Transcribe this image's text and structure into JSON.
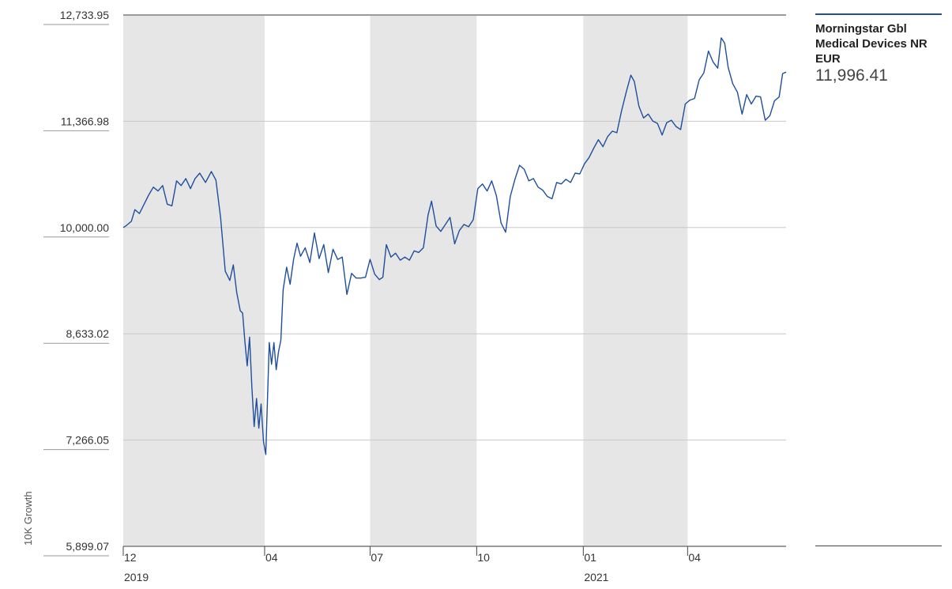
{
  "chart_data": {
    "type": "line",
    "ylabel": "10K Growth",
    "ylim": [
      5899.07,
      12733.95
    ],
    "y_ticks": [
      "12,733.95",
      "11,366.98",
      "10,000.00",
      "8,633.02",
      "7,266.05",
      "5,899.07"
    ],
    "y_tick_values": [
      12733.95,
      11366.98,
      10000.0,
      8633.02,
      7266.05,
      5899.07
    ],
    "x_ticks": [
      {
        "label": "12",
        "year": "2019",
        "date": "2019-12-01"
      },
      {
        "label": "04",
        "year": "",
        "date": "2020-04-01"
      },
      {
        "label": "07",
        "year": "",
        "date": "2020-07-01"
      },
      {
        "label": "10",
        "year": "",
        "date": "2020-10-01"
      },
      {
        "label": "01",
        "year": "2021",
        "date": "2021-01-01"
      },
      {
        "label": "04",
        "year": "",
        "date": "2021-04-01"
      }
    ],
    "xlim": [
      "2019-12-01",
      "2021-06-25"
    ],
    "shaded_periods": [
      [
        "2019-12-01",
        "2020-04-01"
      ],
      [
        "2020-07-01",
        "2020-10-01"
      ],
      [
        "2021-01-01",
        "2021-04-01"
      ]
    ],
    "grid": true,
    "legend_position": "right",
    "series": [
      {
        "name": "Morningstar Gbl Medical Devices NR EUR",
        "color": "#1f4e9c",
        "last_value": "11,996.41",
        "points": [
          [
            "2019-12-01",
            10000
          ],
          [
            "2019-12-04",
            10030
          ],
          [
            "2019-12-08",
            10080
          ],
          [
            "2019-12-11",
            10230
          ],
          [
            "2019-12-15",
            10180
          ],
          [
            "2019-12-19",
            10300
          ],
          [
            "2019-12-23",
            10420
          ],
          [
            "2019-12-27",
            10520
          ],
          [
            "2019-12-31",
            10470
          ],
          [
            "2020-01-04",
            10540
          ],
          [
            "2020-01-08",
            10300
          ],
          [
            "2020-01-12",
            10280
          ],
          [
            "2020-01-16",
            10600
          ],
          [
            "2020-01-20",
            10540
          ],
          [
            "2020-01-24",
            10630
          ],
          [
            "2020-01-28",
            10500
          ],
          [
            "2020-02-01",
            10630
          ],
          [
            "2020-02-05",
            10700
          ],
          [
            "2020-02-10",
            10580
          ],
          [
            "2020-02-15",
            10720
          ],
          [
            "2020-02-19",
            10610
          ],
          [
            "2020-02-23",
            10130
          ],
          [
            "2020-02-27",
            9440
          ],
          [
            "2020-03-02",
            9320
          ],
          [
            "2020-03-05",
            9520
          ],
          [
            "2020-03-08",
            9160
          ],
          [
            "2020-03-11",
            8930
          ],
          [
            "2020-03-13",
            8900
          ],
          [
            "2020-03-15",
            8530
          ],
          [
            "2020-03-17",
            8220
          ],
          [
            "2020-03-19",
            8590
          ],
          [
            "2020-03-21",
            7950
          ],
          [
            "2020-03-23",
            7440
          ],
          [
            "2020-03-25",
            7800
          ],
          [
            "2020-03-27",
            7420
          ],
          [
            "2020-03-29",
            7730
          ],
          [
            "2020-03-31",
            7250
          ],
          [
            "2020-04-02",
            7080
          ],
          [
            "2020-04-05",
            8520
          ],
          [
            "2020-04-07",
            8240
          ],
          [
            "2020-04-09",
            8520
          ],
          [
            "2020-04-11",
            8170
          ],
          [
            "2020-04-13",
            8400
          ],
          [
            "2020-04-15",
            8550
          ],
          [
            "2020-04-17",
            9200
          ],
          [
            "2020-04-20",
            9490
          ],
          [
            "2020-04-23",
            9270
          ],
          [
            "2020-04-26",
            9590
          ],
          [
            "2020-04-29",
            9800
          ],
          [
            "2020-05-02",
            9630
          ],
          [
            "2020-05-06",
            9740
          ],
          [
            "2020-05-10",
            9550
          ],
          [
            "2020-05-14",
            9930
          ],
          [
            "2020-05-18",
            9600
          ],
          [
            "2020-05-22",
            9780
          ],
          [
            "2020-05-26",
            9420
          ],
          [
            "2020-05-30",
            9720
          ],
          [
            "2020-06-03",
            9590
          ],
          [
            "2020-06-07",
            9620
          ],
          [
            "2020-06-11",
            9140
          ],
          [
            "2020-06-15",
            9410
          ],
          [
            "2020-06-19",
            9350
          ],
          [
            "2020-06-23",
            9350
          ],
          [
            "2020-06-27",
            9360
          ],
          [
            "2020-07-01",
            9590
          ],
          [
            "2020-07-05",
            9400
          ],
          [
            "2020-07-09",
            9330
          ],
          [
            "2020-07-12",
            9360
          ],
          [
            "2020-07-15",
            9780
          ],
          [
            "2020-07-19",
            9620
          ],
          [
            "2020-07-23",
            9670
          ],
          [
            "2020-07-27",
            9580
          ],
          [
            "2020-07-31",
            9620
          ],
          [
            "2020-08-04",
            9580
          ],
          [
            "2020-08-08",
            9700
          ],
          [
            "2020-08-12",
            9680
          ],
          [
            "2020-08-16",
            9740
          ],
          [
            "2020-08-20",
            10160
          ],
          [
            "2020-08-23",
            10340
          ],
          [
            "2020-08-27",
            10020
          ],
          [
            "2020-08-31",
            9950
          ],
          [
            "2020-09-04",
            10040
          ],
          [
            "2020-09-08",
            10130
          ],
          [
            "2020-09-12",
            9790
          ],
          [
            "2020-09-16",
            9960
          ],
          [
            "2020-09-20",
            10040
          ],
          [
            "2020-09-24",
            10010
          ],
          [
            "2020-09-28",
            10100
          ],
          [
            "2020-10-02",
            10500
          ],
          [
            "2020-10-06",
            10560
          ],
          [
            "2020-10-10",
            10470
          ],
          [
            "2020-10-14",
            10600
          ],
          [
            "2020-10-18",
            10410
          ],
          [
            "2020-10-22",
            10060
          ],
          [
            "2020-10-26",
            9940
          ],
          [
            "2020-10-30",
            10400
          ],
          [
            "2020-11-03",
            10620
          ],
          [
            "2020-11-07",
            10800
          ],
          [
            "2020-11-11",
            10750
          ],
          [
            "2020-11-15",
            10600
          ],
          [
            "2020-11-19",
            10630
          ],
          [
            "2020-11-23",
            10520
          ],
          [
            "2020-11-27",
            10480
          ],
          [
            "2020-12-01",
            10400
          ],
          [
            "2020-12-05",
            10370
          ],
          [
            "2020-12-09",
            10580
          ],
          [
            "2020-12-13",
            10560
          ],
          [
            "2020-12-17",
            10620
          ],
          [
            "2020-12-21",
            10580
          ],
          [
            "2020-12-25",
            10700
          ],
          [
            "2020-12-29",
            10690
          ],
          [
            "2021-01-02",
            10820
          ],
          [
            "2021-01-06",
            10900
          ],
          [
            "2021-01-10",
            11020
          ],
          [
            "2021-01-14",
            11130
          ],
          [
            "2021-01-18",
            11040
          ],
          [
            "2021-01-22",
            11170
          ],
          [
            "2021-01-26",
            11240
          ],
          [
            "2021-01-30",
            11220
          ],
          [
            "2021-02-03",
            11500
          ],
          [
            "2021-02-07",
            11740
          ],
          [
            "2021-02-11",
            11960
          ],
          [
            "2021-02-14",
            11880
          ],
          [
            "2021-02-18",
            11560
          ],
          [
            "2021-02-22",
            11410
          ],
          [
            "2021-02-26",
            11460
          ],
          [
            "2021-03-02",
            11370
          ],
          [
            "2021-03-06",
            11340
          ],
          [
            "2021-03-10",
            11190
          ],
          [
            "2021-03-14",
            11350
          ],
          [
            "2021-03-18",
            11380
          ],
          [
            "2021-03-22",
            11300
          ],
          [
            "2021-03-26",
            11260
          ],
          [
            "2021-03-30",
            11590
          ],
          [
            "2021-04-03",
            11640
          ],
          [
            "2021-04-07",
            11660
          ],
          [
            "2021-04-11",
            11900
          ],
          [
            "2021-04-15",
            11990
          ],
          [
            "2021-04-19",
            12270
          ],
          [
            "2021-04-23",
            12130
          ],
          [
            "2021-04-27",
            12050
          ],
          [
            "2021-04-30",
            12440
          ],
          [
            "2021-05-03",
            12370
          ],
          [
            "2021-05-06",
            12060
          ],
          [
            "2021-05-10",
            11850
          ],
          [
            "2021-05-14",
            11740
          ],
          [
            "2021-05-18",
            11460
          ],
          [
            "2021-05-22",
            11710
          ],
          [
            "2021-05-26",
            11590
          ],
          [
            "2021-05-30",
            11690
          ],
          [
            "2021-06-03",
            11680
          ],
          [
            "2021-06-07",
            11380
          ],
          [
            "2021-06-11",
            11440
          ],
          [
            "2021-06-15",
            11630
          ],
          [
            "2021-06-19",
            11680
          ],
          [
            "2021-06-22",
            11980
          ],
          [
            "2021-06-25",
            12000
          ]
        ]
      }
    ]
  }
}
